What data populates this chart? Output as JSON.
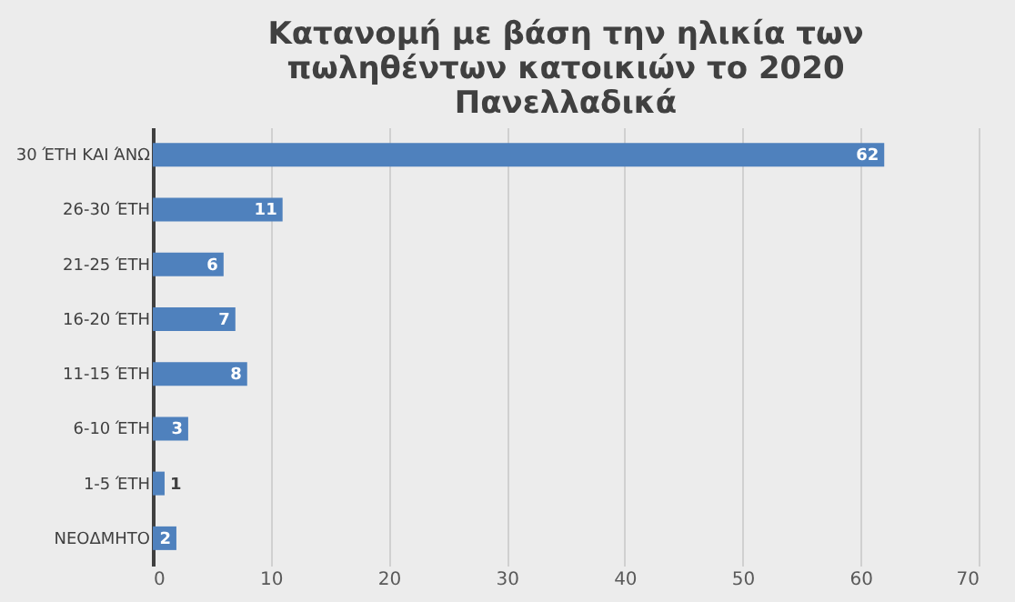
{
  "chart_data": {
    "type": "bar",
    "orientation": "horizontal",
    "title": "Κατανομή με βάση την ηλικία των\nπωληθέντων κατοικιών το 2020\nΠανελλαδικά",
    "categories": [
      "30 ΈΤΗ ΚΑΙ ΆΝΩ",
      "26-30 ΈΤΗ",
      "21-25 ΈΤΗ",
      "16-20 ΈΤΗ",
      "11-15 ΈΤΗ",
      "6-10 ΈΤΗ",
      "1-5 ΈΤΗ",
      "ΝΕΟΔΜΗΤΟ"
    ],
    "values": [
      62,
      11,
      6,
      7,
      8,
      3,
      1,
      2
    ],
    "color": "#4f81bd",
    "xlim": [
      0,
      70
    ],
    "xticks": [
      0,
      10,
      20,
      30,
      40,
      50,
      60,
      70
    ],
    "grid": "x",
    "data_labels": true
  }
}
